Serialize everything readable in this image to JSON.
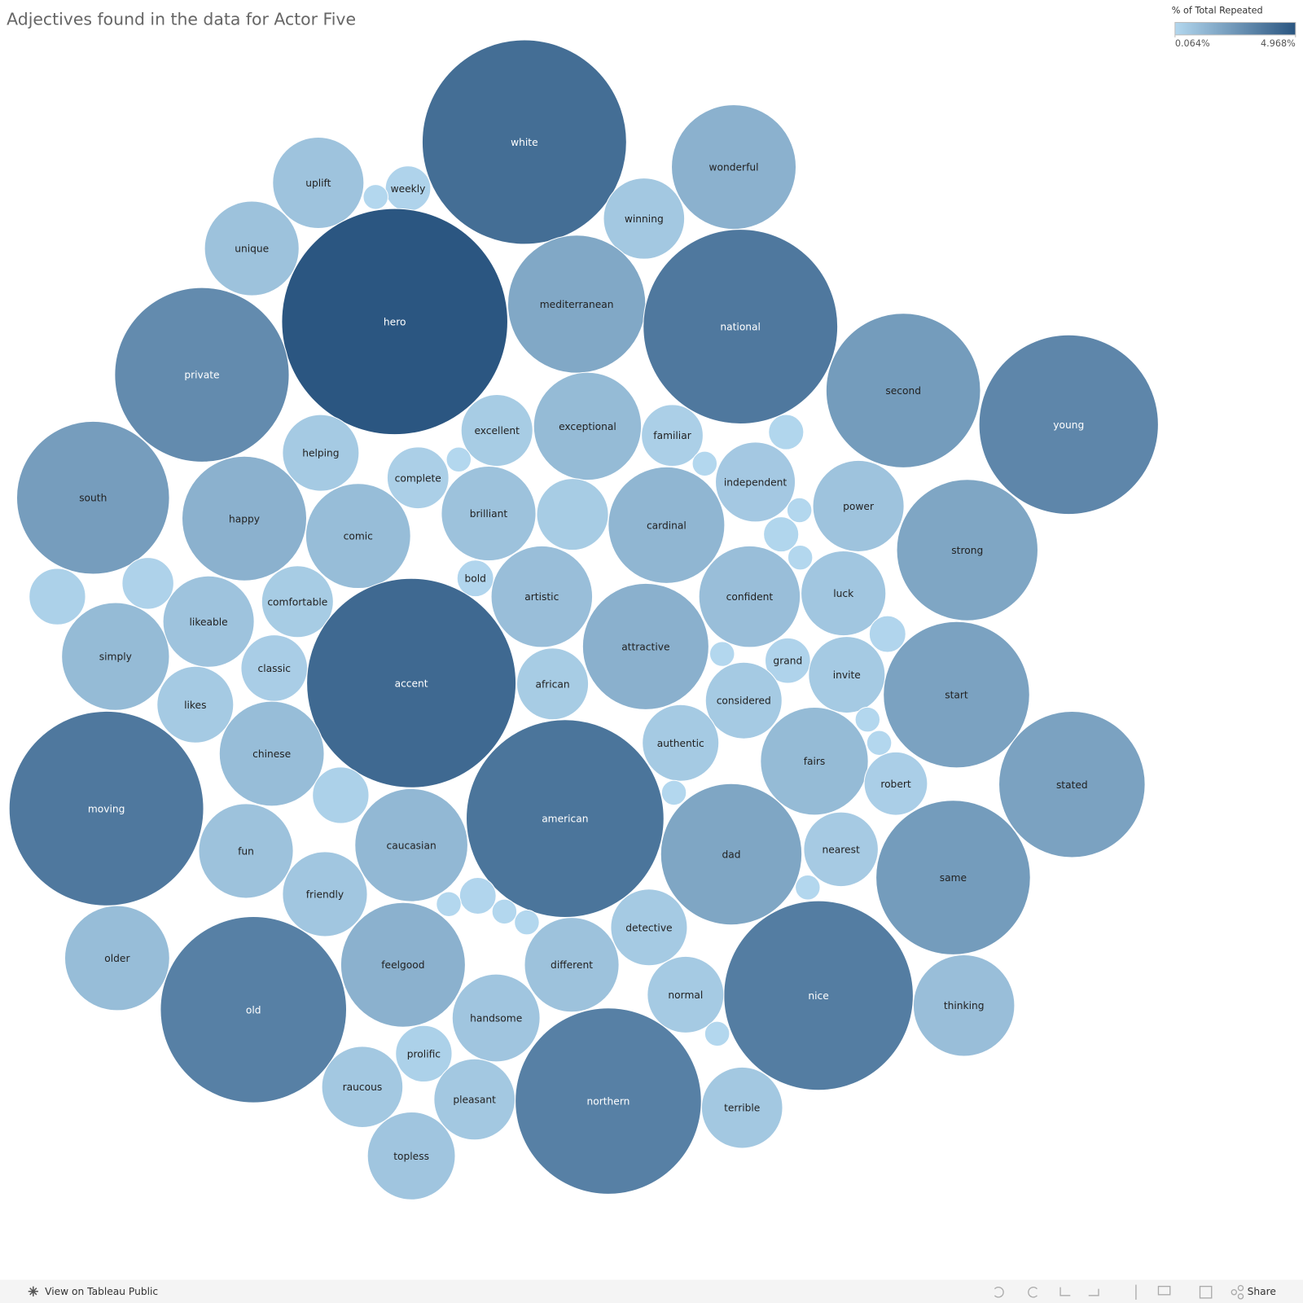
{
  "chart_data": {
    "type": "bubble",
    "title": "Adjectives found in the data for Actor Five",
    "categories": [
      "white",
      "wonderful",
      "uplift",
      "weekly",
      null,
      "winning",
      "unique",
      "hero",
      "mediterranean",
      "national",
      "private",
      "second",
      "young",
      "excellent",
      "exceptional",
      "familiar",
      null,
      "helping",
      "complete",
      null,
      null,
      "independent",
      "south",
      "happy",
      "comic",
      "brilliant",
      null,
      "cardinal",
      "power",
      null,
      null,
      null,
      "strong",
      null,
      null,
      "bold",
      "comfortable",
      "likeable",
      "artistic",
      "confident",
      "luck",
      "simply",
      "classic",
      "accent",
      "african",
      "attractive",
      null,
      "grand",
      "invite",
      null,
      "start",
      "likes",
      "considered",
      "chinese",
      "authentic",
      null,
      null,
      "fairs",
      "robert",
      "stated",
      "moving",
      null,
      null,
      "american",
      "caucasian",
      "fun",
      "dad",
      "nearest",
      "same",
      "friendly",
      null,
      null,
      null,
      null,
      null,
      "detective",
      "older",
      "old",
      "feelgood",
      "different",
      "nice",
      "thinking",
      "normal",
      "handsome",
      null,
      "prolific",
      "raucous",
      "pleasant",
      "northern",
      "terrible",
      "topless"
    ],
    "values": [
      4.06,
      1.51,
      0.81,
      0.2,
      0.06,
      0.64,
      0.87,
      4.968,
      1.85,
      3.68,
      2.96,
      2.32,
      3.13,
      0.5,
      1.13,
      0.37,
      0.12,
      0.57,
      0.37,
      0.06,
      0.06,
      0.62,
      2.27,
      1.51,
      1.07,
      0.87,
      0.5,
      1.32,
      0.81,
      0.06,
      0.12,
      0.06,
      1.94,
      0.31,
      0.26,
      0.13,
      0.5,
      0.81,
      1.0,
      1.0,
      0.7,
      1.13,
      0.43,
      4.26,
      0.5,
      1.55,
      0.06,
      0.2,
      0.57,
      0.13,
      2.08,
      0.57,
      0.57,
      1.07,
      0.57,
      0.06,
      0.06,
      1.13,
      0.39,
      2.08,
      3.68,
      0.31,
      0.06,
      3.8,
      1.24,
      0.87,
      1.94,
      0.54,
      2.32,
      0.7,
      0.13,
      0.06,
      0.06,
      0.06,
      0.06,
      0.57,
      1.07,
      3.37,
      1.51,
      0.87,
      3.49,
      1.0,
      0.57,
      0.75,
      0.06,
      0.31,
      0.64,
      0.64,
      3.37,
      0.64,
      0.75
    ],
    "color_legend": {
      "title": "% of Total Repeated",
      "colors": [
        "#b3d7ee",
        "#2b5681"
      ],
      "ticks": [
        {
          "value": 0.064,
          "label": "0.064%"
        },
        {
          "value": 4.968,
          "label": "4.968%"
        }
      ]
    }
  },
  "footer": {
    "link": "View on Tableau Public",
    "share": "Share"
  }
}
